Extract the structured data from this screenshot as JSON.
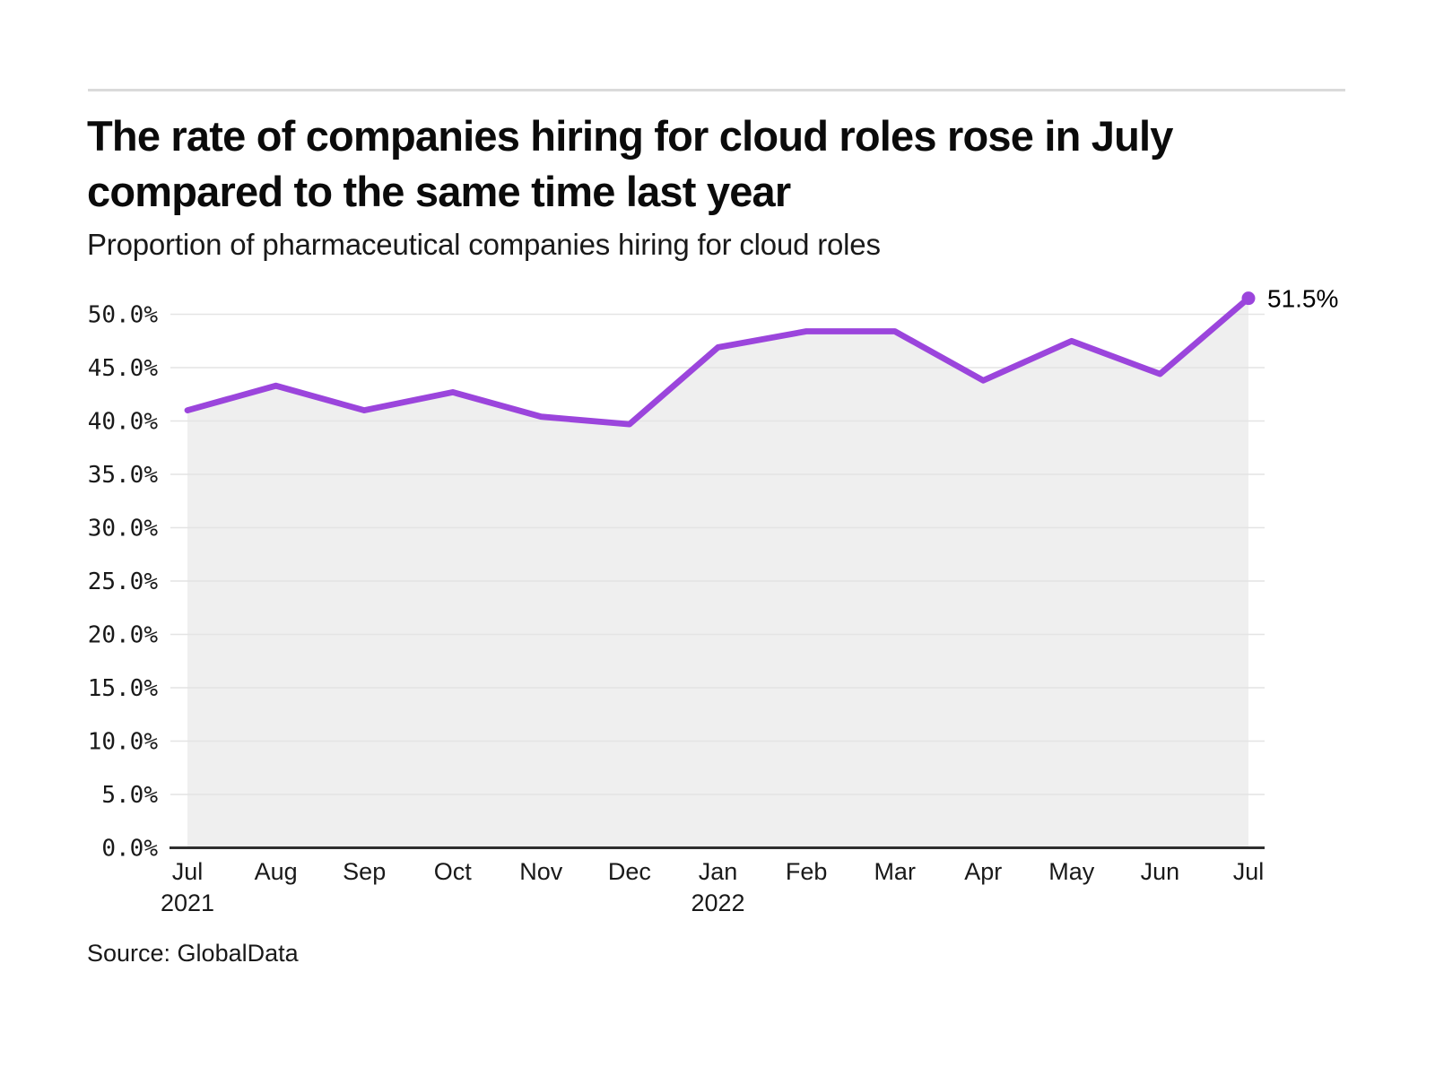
{
  "header": {
    "title_lines": [
      "The rate of companies hiring for cloud roles rose in July",
      "compared to the same time last year"
    ],
    "subtitle": "Proportion of pharmaceutical companies hiring for cloud roles"
  },
  "footer": {
    "source": "Source: GlobalData"
  },
  "colors": {
    "line": "#9b45dc",
    "area_fill": "#efefef",
    "grid": "#e4e4e4",
    "axis": "#2f2f2f",
    "divider": "#dadada",
    "text": "#191919",
    "end_label": "#000000"
  },
  "chart_data": {
    "type": "area",
    "title": "The rate of companies hiring for cloud roles rose in July compared to the same time last year",
    "subtitle": "Proportion of pharmaceutical companies hiring for cloud roles",
    "x": [
      "Jul 2021",
      "Aug 2021",
      "Sep 2021",
      "Oct 2021",
      "Nov 2021",
      "Dec 2021",
      "Jan 2022",
      "Feb 2022",
      "Mar 2022",
      "Apr 2022",
      "May 2022",
      "Jun 2022",
      "Jul 2022"
    ],
    "values": [
      41.0,
      43.3,
      41.0,
      42.7,
      40.4,
      39.7,
      46.9,
      48.4,
      48.4,
      43.8,
      47.5,
      44.4,
      51.5
    ],
    "xticks": [
      {
        "month": "Jul",
        "year": "2021"
      },
      {
        "month": "Aug"
      },
      {
        "month": "Sep"
      },
      {
        "month": "Oct"
      },
      {
        "month": "Nov"
      },
      {
        "month": "Dec"
      },
      {
        "month": "Jan",
        "year": "2022"
      },
      {
        "month": "Feb"
      },
      {
        "month": "Mar"
      },
      {
        "month": "Apr"
      },
      {
        "month": "May"
      },
      {
        "month": "Jun"
      },
      {
        "month": "Jul"
      }
    ],
    "yticks": {
      "values": [
        0,
        5,
        10,
        15,
        20,
        25,
        30,
        35,
        40,
        45,
        50
      ],
      "labels": [
        "0.0%",
        "5.0%",
        "10.0%",
        "15.0%",
        "20.0%",
        "25.0%",
        "30.0%",
        "35.0%",
        "40.0%",
        "45.0%",
        "50.0%"
      ]
    },
    "ylim": [
      0,
      52
    ],
    "grid": true,
    "legend_position": "none",
    "end_label": "51.5%"
  }
}
